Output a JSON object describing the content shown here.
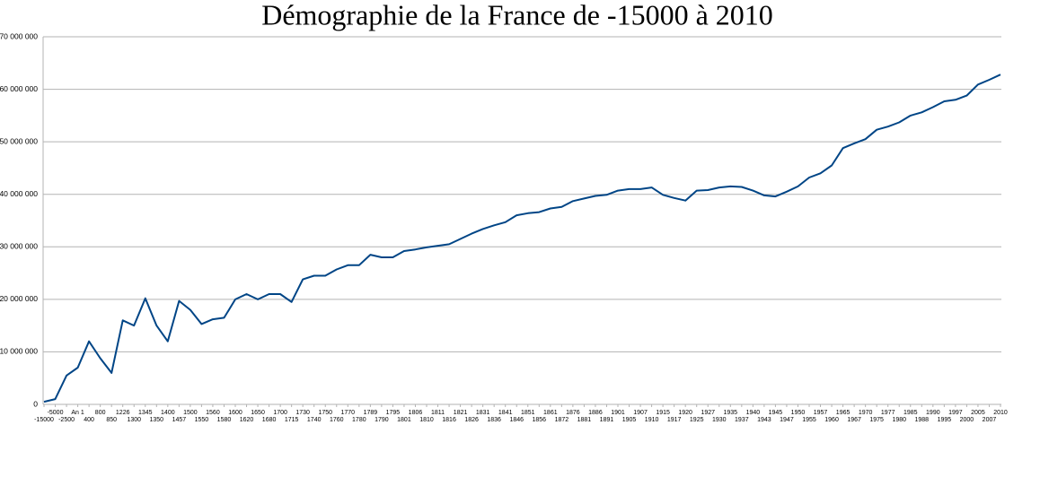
{
  "chart_data": {
    "type": "line",
    "title": "Démographie de la France de -15000 à 2010",
    "categories": [
      "-15000",
      "-5000",
      "-2500",
      "An 1",
      "400",
      "800",
      "850",
      "1226",
      "1300",
      "1345",
      "1350",
      "1400",
      "1457",
      "1500",
      "1550",
      "1560",
      "1580",
      "1600",
      "1620",
      "1650",
      "1680",
      "1700",
      "1715",
      "1730",
      "1740",
      "1750",
      "1760",
      "1770",
      "1780",
      "1789",
      "1790",
      "1795",
      "1801",
      "1806",
      "1810",
      "1811",
      "1816",
      "1821",
      "1826",
      "1831",
      "1836",
      "1841",
      "1846",
      "1851",
      "1856",
      "1861",
      "1872",
      "1876",
      "1881",
      "1886",
      "1891",
      "1901",
      "1905",
      "1907",
      "1910",
      "1915",
      "1917",
      "1920",
      "1925",
      "1927",
      "1930",
      "1935",
      "1937",
      "1940",
      "1943",
      "1945",
      "1947",
      "1950",
      "1955",
      "1957",
      "1960",
      "1965",
      "1967",
      "1970",
      "1975",
      "1977",
      "1980",
      "1985",
      "1988",
      "1990",
      "1995",
      "1997",
      "2000",
      "2005",
      "2007",
      "2010"
    ],
    "color": "#004586",
    "values": [
      500000,
      1000000,
      5500000,
      7000000,
      12000000,
      8800000,
      6000000,
      16000000,
      15000000,
      20200000,
      15000000,
      12000000,
      19700000,
      18000000,
      15300000,
      16200000,
      16500000,
      20000000,
      21000000,
      20000000,
      21000000,
      21000000,
      19500000,
      23800000,
      24500000,
      24500000,
      25700000,
      26500000,
      26500000,
      28500000,
      28000000,
      28000000,
      29200000,
      29500000,
      29900000,
      30200000,
      30500000,
      31500000,
      32500000,
      33400000,
      34100000,
      34700000,
      36000000,
      36400000,
      36600000,
      37300000,
      37600000,
      38700000,
      39200000,
      39700000,
      39900000,
      40700000,
      41000000,
      41000000,
      41300000,
      39900000,
      39300000,
      38800000,
      40700000,
      40800000,
      41300000,
      41500000,
      41400000,
      40700000,
      39800000,
      39600000,
      40500000,
      41500000,
      43200000,
      44000000,
      45500000,
      48800000,
      49700000,
      50500000,
      52300000,
      52900000,
      53700000,
      55000000,
      55600000,
      56600000,
      57700000,
      58000000,
      58800000,
      60900000,
      61800000,
      62800000
    ],
    "ylim": [
      0,
      70000000
    ],
    "yticks": [
      0,
      {
        "value": 10000000,
        "label": "10 000 000"
      },
      {
        "value": 20000000,
        "label": "20 000 000"
      },
      {
        "value": 30000000,
        "label": "30 000 000"
      },
      {
        "value": 40000000,
        "label": "40 000 000"
      },
      {
        "value": 50000000,
        "label": "50 000 000"
      },
      {
        "value": 60000000,
        "label": "60 000 000"
      },
      {
        "value": 70000000,
        "label": "70 000 000"
      }
    ],
    "grid": true
  }
}
